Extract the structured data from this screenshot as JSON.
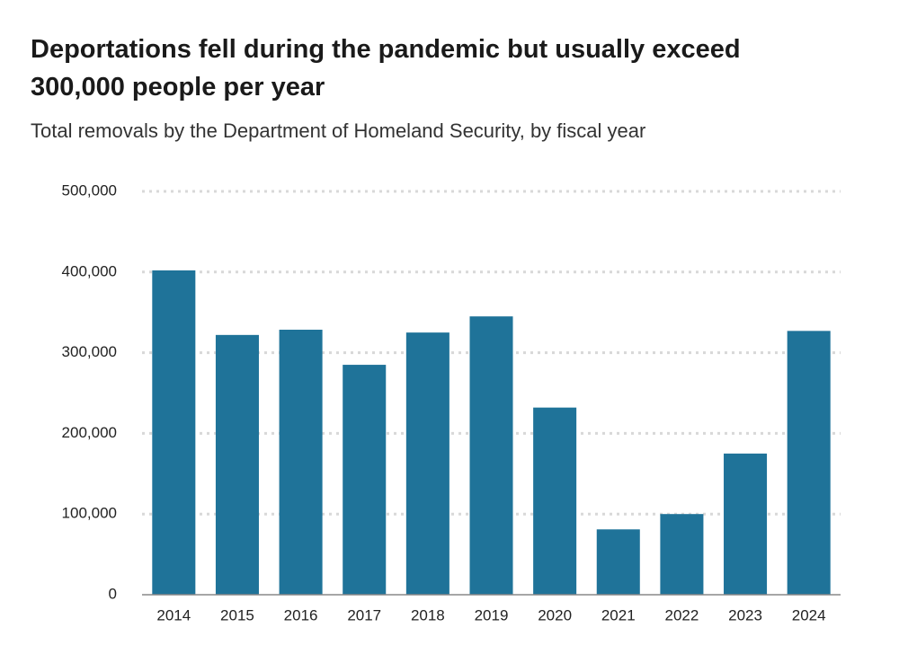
{
  "chart_data": {
    "type": "bar",
    "title": "Deportations fell during the pandemic but usually exceed 300,000 people per year",
    "subtitle": "Total removals by the Department of Homeland Security, by fiscal year",
    "categories": [
      "2014",
      "2015",
      "2016",
      "2017",
      "2018",
      "2019",
      "2020",
      "2021",
      "2022",
      "2023",
      "2024"
    ],
    "values": [
      402000,
      322000,
      328500,
      285000,
      325000,
      345000,
      232000,
      81000,
      100000,
      175000,
      327000
    ],
    "color": "#1f7399",
    "ylim": [
      0,
      500000
    ],
    "yticks": [
      0,
      {
        "value": 100000,
        "label": "100,000"
      },
      {
        "value": 200000,
        "label": "200,000"
      },
      {
        "value": 300000,
        "label": "300,000"
      },
      {
        "value": 400000,
        "label": "400,000"
      },
      {
        "value": 500000,
        "label": "500,000"
      }
    ],
    "grid": true
  }
}
